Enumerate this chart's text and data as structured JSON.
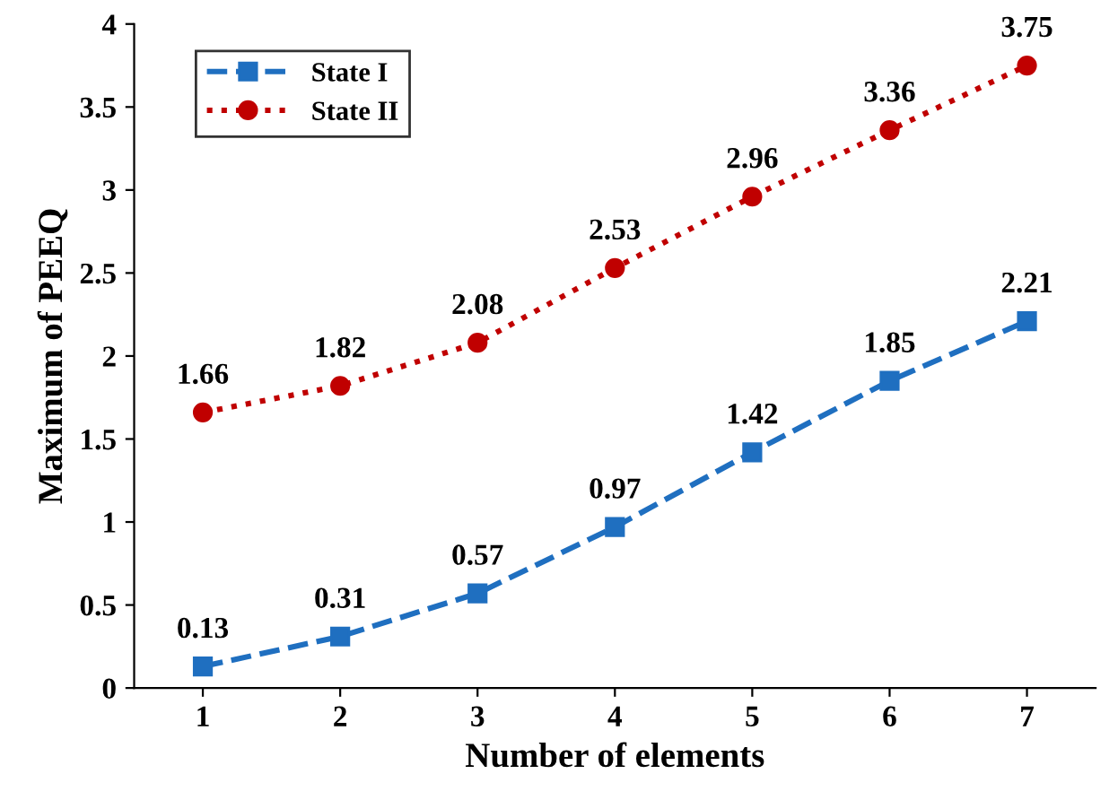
{
  "chart_data": {
    "type": "line",
    "xlabel": "Number of elements",
    "ylabel": "Maximum of PEEQ",
    "x": [
      1,
      2,
      3,
      4,
      5,
      6,
      7
    ],
    "series": [
      {
        "name": "State I",
        "color": "#1f6fc0",
        "values": [
          0.13,
          0.31,
          0.57,
          0.97,
          1.42,
          1.85,
          2.21
        ],
        "marker": "square",
        "line_style": "dashed"
      },
      {
        "name": "State II",
        "color": "#c00000",
        "values": [
          1.66,
          1.82,
          2.08,
          2.53,
          2.96,
          3.36,
          3.75
        ],
        "marker": "circle",
        "line_style": "dotted"
      }
    ],
    "xlim": [
      0.5,
      7.5
    ],
    "xticks": [
      1,
      2,
      3,
      4,
      5,
      6,
      7
    ],
    "ylim": [
      0,
      4
    ],
    "yticks": [
      0,
      0.5,
      1,
      1.5,
      2,
      2.5,
      3,
      3.5,
      4
    ],
    "grid": false,
    "legend": "top left",
    "data_labels": true
  }
}
